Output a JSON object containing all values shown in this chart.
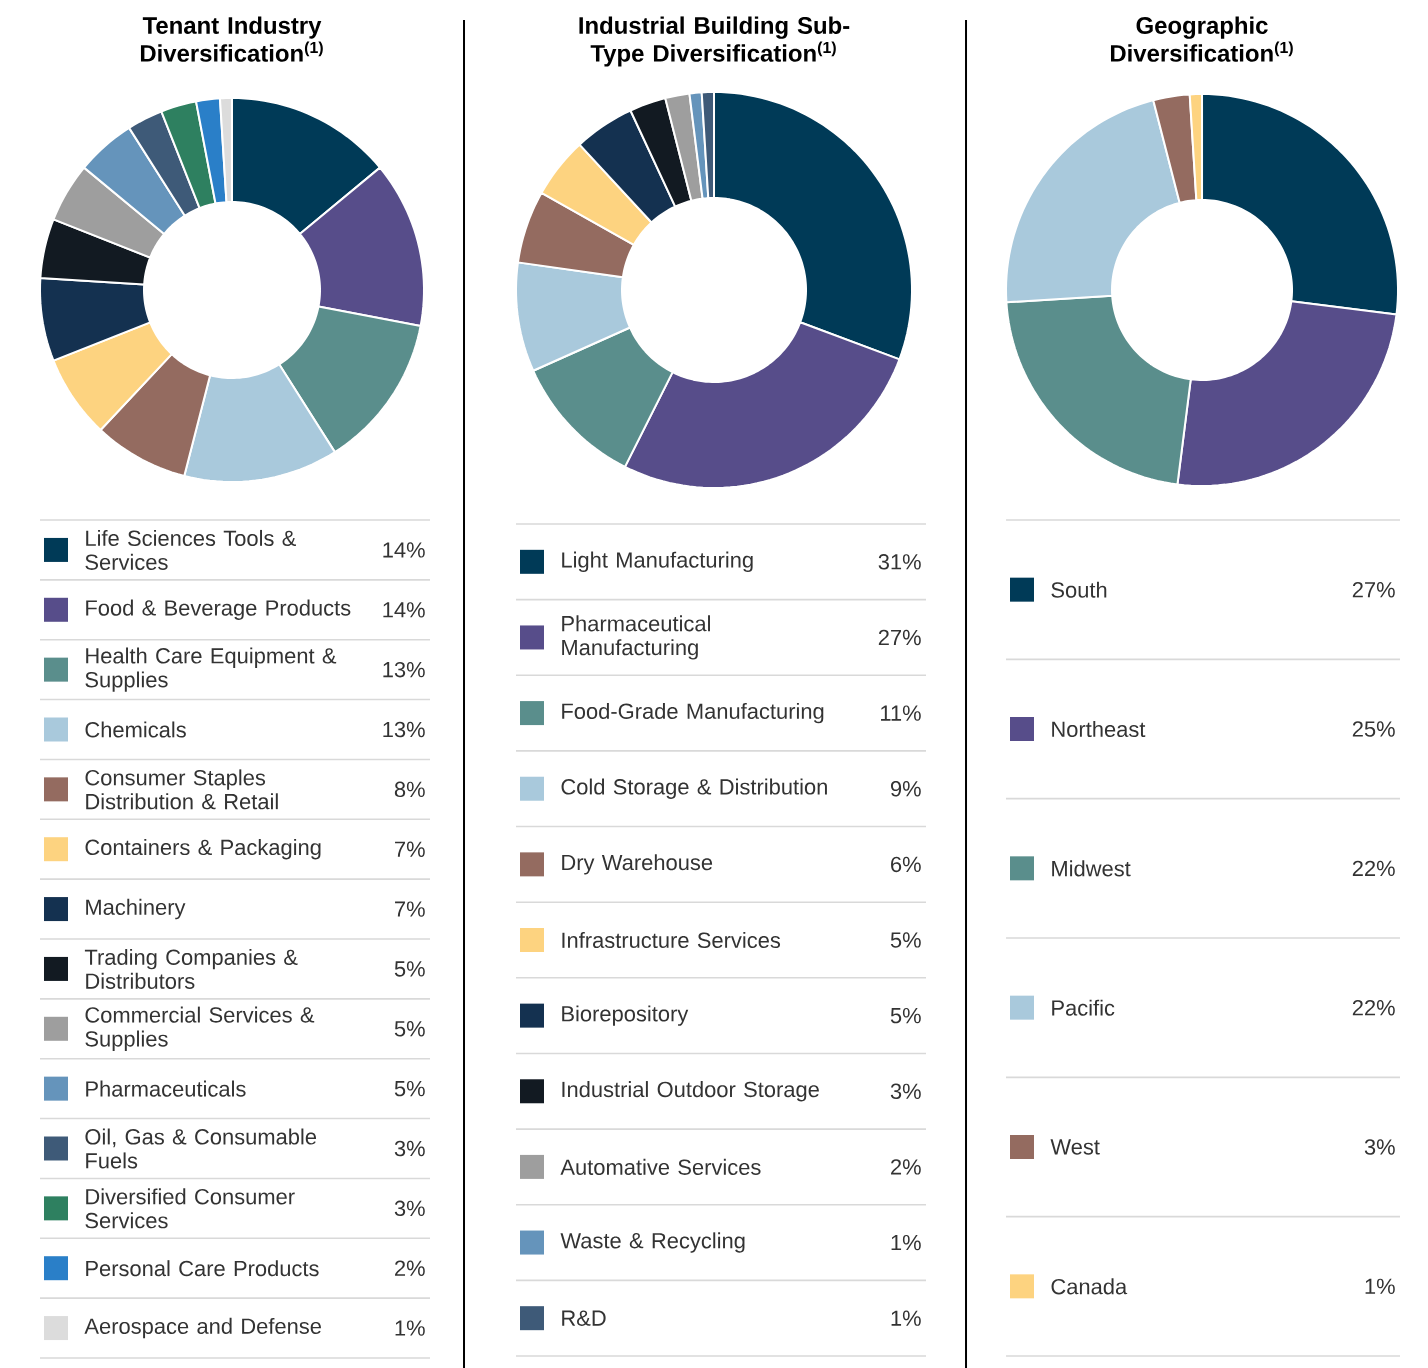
{
  "chart_data": [
    {
      "type": "donut",
      "title": "Tenant Industry Diversification$^{(1)}$",
      "legend": "bottom",
      "categories": [
        "Life Sciences Tools & Services",
        "Food & Beverage Products",
        "Health Care Equipment & Supplies",
        "Chemicals",
        "Consumer Staples Distribution & Retail",
        "Containers & Packaging",
        "Machinery",
        "Trading Companies & Distributors",
        "Commercial Services & Supplies",
        "Pharmaceuticals",
        "Oil, Gas & Consumable Fuels",
        "Diversified Consumer Services",
        "Personal Care Products",
        "Aerospace and Defense"
      ],
      "values": [
        14,
        14,
        13,
        13,
        8,
        7,
        7,
        5,
        5,
        5,
        3,
        3,
        2,
        1
      ],
      "value_labels": [
        "14%",
        "14%",
        "13%",
        "13%",
        "8%",
        "7%",
        "7%",
        "5%",
        "5%",
        "5%",
        "3%",
        "3%",
        "2%",
        "1%"
      ],
      "colors": [
        "#003a57",
        "#574d8a",
        "#5a8e8c",
        "#a9c9dc",
        "#946b60",
        "#fdd380",
        "#143150",
        "#121a22",
        "#9e9e9e",
        "#6594bb",
        "#3e5a78",
        "#2e8060",
        "#2a7fc8",
        "#dcdcdc"
      ]
    },
    {
      "type": "donut",
      "title": "Industrial Building Sub-Type Diversification$^{(1)}$",
      "legend": "bottom",
      "categories": [
        "Light Manufacturing",
        "Pharmaceutical Manufacturing",
        "Food-Grade Manufacturing",
        "Cold Storage & Distribution",
        "Dry Warehouse",
        "Infrastructure Services",
        "Biorepository",
        "Industrial Outdoor Storage",
        "Automative Services",
        "Waste & Recycling",
        "R&D"
      ],
      "values": [
        31,
        27,
        11,
        9,
        6,
        5,
        5,
        3,
        2,
        1,
        1
      ],
      "value_labels": [
        "31%",
        "27%",
        "11%",
        "9%",
        "6%",
        "5%",
        "5%",
        "3%",
        "2%",
        "1%",
        "1%"
      ],
      "colors": [
        "#003a57",
        "#574d8a",
        "#5a8e8c",
        "#a9c9dc",
        "#946b60",
        "#fdd380",
        "#143150",
        "#121a22",
        "#9e9e9e",
        "#6594bb",
        "#3e5a78"
      ]
    },
    {
      "type": "donut",
      "title": "Geographic Diversification$^{(1)}$",
      "legend": "bottom",
      "categories": [
        "South",
        "Northeast",
        "Midwest",
        "Pacific",
        "West",
        "Canada"
      ],
      "values": [
        27,
        25,
        22,
        22,
        3,
        1
      ],
      "value_labels": [
        "27%",
        "25%",
        "22%",
        "22%",
        "3%",
        "1%"
      ],
      "colors": [
        "#003a57",
        "#574d8a",
        "#5a8e8c",
        "#a9c9dc",
        "#946b60",
        "#fdd380"
      ]
    }
  ]
}
